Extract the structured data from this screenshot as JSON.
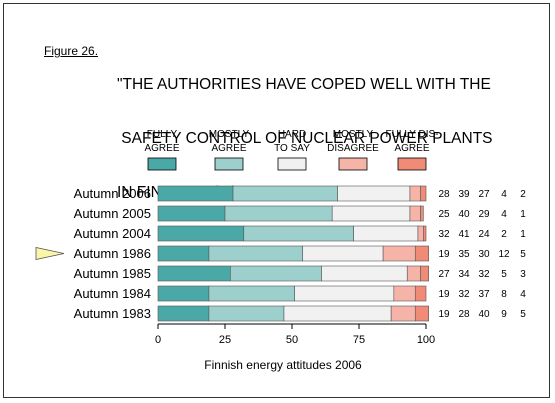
{
  "figure_label": "Figure 26.",
  "title_lines": [
    "\"THE AUTHORITIES HAVE COPED WELL WITH THE",
    " SAFETY CONTROL OF NUCLEAR POWER PLANTS",
    "IN FINLAND\" (%)."
  ],
  "chart_data": {
    "type": "bar",
    "orientation": "horizontal",
    "stacked": true,
    "title": "\"THE AUTHORITIES HAVE COPED WELL WITH THE SAFETY CONTROL OF NUCLEAR POWER PLANTS IN FINLAND\" (%).",
    "xlabel": "Finnish energy attitudes 2006",
    "xlim": [
      0,
      100
    ],
    "xticks": [
      0,
      25,
      50,
      75,
      100
    ],
    "categories": [
      "Autumn 2006",
      "Autumn 2005",
      "Autumn 2004",
      "Autumn 1986",
      "Autumn 1985",
      "Autumn 1984",
      "Autumn 1983"
    ],
    "highlighted_category": "Autumn 1986",
    "legend_position": "top",
    "series": [
      {
        "name_lines": [
          "FULLY",
          "AGREE"
        ],
        "color": "#4aa9a7",
        "values": [
          28,
          25,
          32,
          19,
          27,
          19,
          19
        ]
      },
      {
        "name_lines": [
          "MOSTLY",
          "AGREE"
        ],
        "color": "#9dd0cd",
        "values": [
          39,
          40,
          41,
          35,
          34,
          32,
          28
        ]
      },
      {
        "name_lines": [
          "HARD",
          "TO SAY"
        ],
        "color": "#f1f1f1",
        "values": [
          27,
          29,
          24,
          30,
          32,
          37,
          40
        ]
      },
      {
        "name_lines": [
          "MOSTLY",
          "DISAGREE"
        ],
        "color": "#f6b4a8",
        "values": [
          4,
          4,
          2,
          12,
          5,
          8,
          9
        ]
      },
      {
        "name_lines": [
          "FULLY DIS-",
          "AGREE"
        ],
        "color": "#f08b78",
        "values": [
          2,
          1,
          1,
          5,
          3,
          4,
          5
        ]
      }
    ]
  }
}
